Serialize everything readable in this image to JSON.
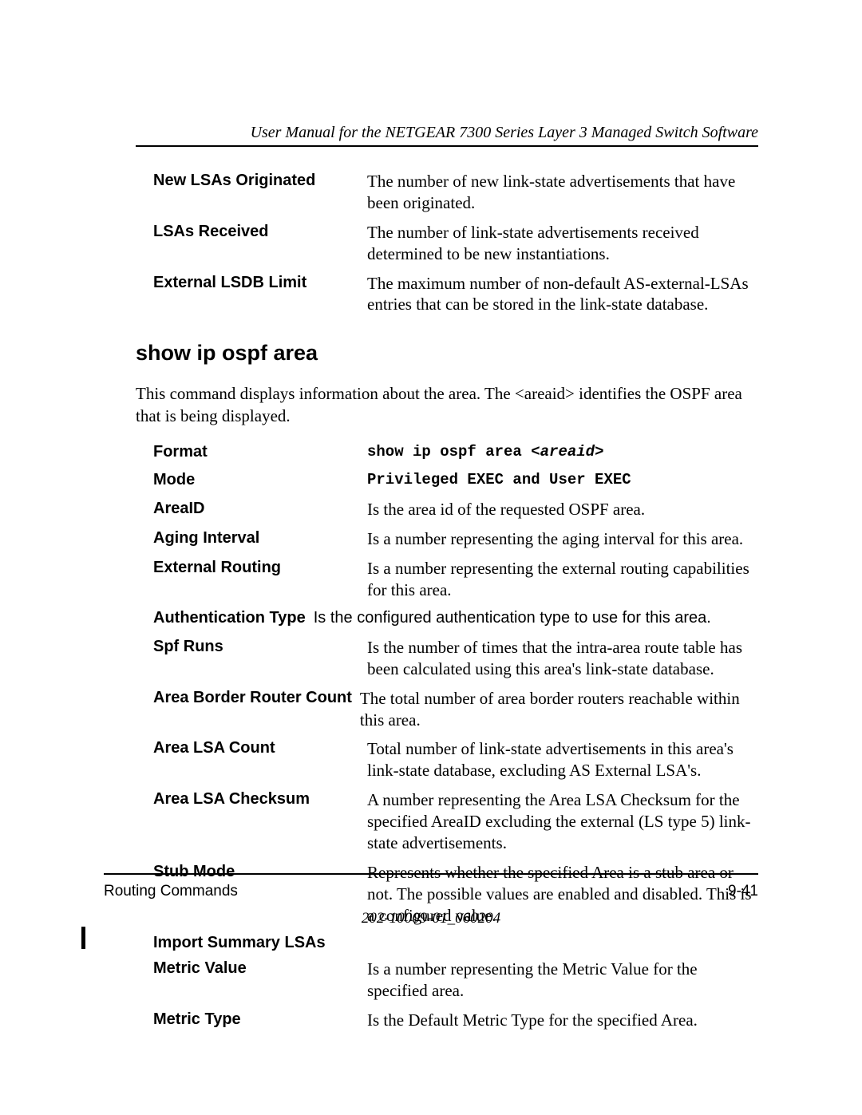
{
  "header": {
    "running_title": "User Manual for the NETGEAR 7300 Series Layer 3 Managed Switch Software"
  },
  "top_defs": [
    {
      "term": "New LSAs Originated",
      "desc": "The number of new link-state advertisements that have been originated."
    },
    {
      "term": "LSAs Received",
      "desc": "The number of link-state advertisements received determined to be new instantiations."
    },
    {
      "term": "External LSDB Limit",
      "desc": "The maximum number of non-default AS-external-LSAs entries that can be stored in the link-state database."
    }
  ],
  "section": {
    "heading": "show ip ospf area",
    "intro": "This command displays information about the area. The <areaid> identifies the OSPF area that is being displayed.",
    "rows": [
      {
        "term": "Format",
        "desc_prefix": "show ip ospf area <",
        "desc_italic": "areaid",
        "desc_suffix": ">",
        "style": "mono"
      },
      {
        "term": "Mode",
        "desc": "Privileged EXEC and User EXEC",
        "style": "mono"
      },
      {
        "term": "AreaID",
        "desc": "Is the area id of the requested OSPF area."
      },
      {
        "term": "Aging Interval",
        "desc": "Is a number representing the aging interval for this area."
      },
      {
        "term": "External Routing",
        "desc": "Is a number representing the external routing capabilities for this area."
      },
      {
        "term": "Authentication Type",
        "desc": "Is the configured authentication type to use for this area.",
        "style": "sans",
        "autoterm": true
      },
      {
        "term": "Spf Runs",
        "desc": "Is the number of times that the intra-area route table has been calculated using this area's link-state database."
      },
      {
        "term": "Area Border Router Count",
        "desc": "The total number of area border routers reachable within this area.",
        "autoterm": true
      },
      {
        "term": "Area LSA Count",
        "desc": "Total number of link-state advertisements in this area's link-state database, excluding AS External LSA's."
      },
      {
        "term": "Area LSA Checksum",
        "desc": "A number representing the Area LSA Checksum for the specified AreaID excluding the external (LS type 5) link-state advertisements."
      },
      {
        "term": "Stub Mode",
        "desc": "Represents whether the specified Area is a stub area or not. The possible values are enabled and disabled. This is a configured value."
      },
      {
        "term": "Import Summary LSAs",
        "desc": "",
        "termonly": true
      },
      {
        "term": "Metric Value",
        "desc": "Is a number representing the Metric Value for the specified area."
      },
      {
        "term": "Metric Type",
        "desc": "Is the Default Metric Type for the specified Area."
      }
    ]
  },
  "footer": {
    "chapter": "Routing Commands",
    "page_num": "9-41",
    "doc_id": "202-10009-01_060204"
  }
}
